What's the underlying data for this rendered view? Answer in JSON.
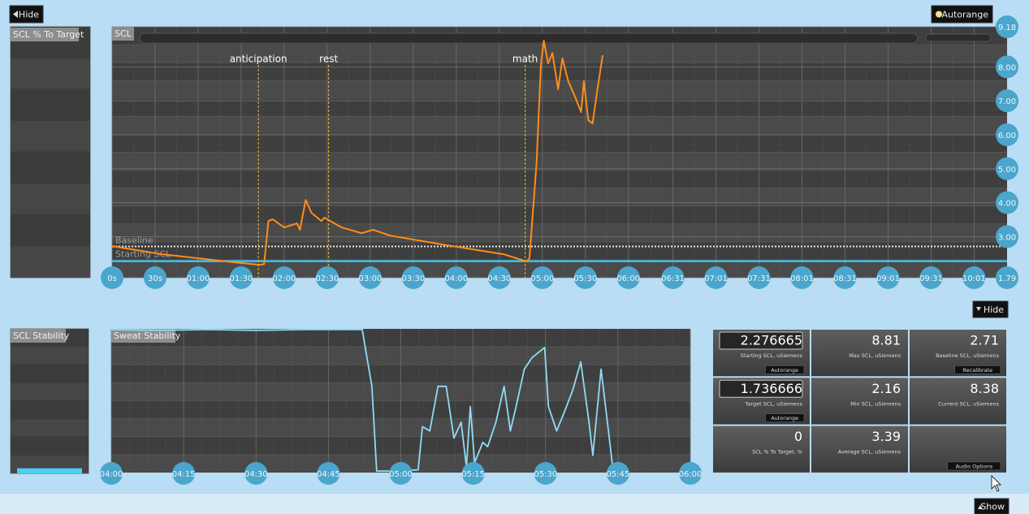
{
  "buttons": {
    "hide_top": "Hide",
    "autorange": "Autorange",
    "hide_mid": "Hide",
    "show": "Show"
  },
  "target_panel": {
    "title": "SCL % To Target"
  },
  "scl_chart": {
    "type": "line",
    "title": "SCL",
    "color": "#ff8c1a",
    "x": [
      0,
      35,
      61,
      86,
      103,
      106,
      109,
      112,
      120,
      129,
      131,
      135,
      139,
      146,
      148,
      160,
      174,
      182,
      194,
      233,
      273,
      289,
      291,
      296,
      299,
      301,
      304,
      307,
      311,
      314,
      318,
      323,
      327,
      329,
      332,
      335,
      338,
      342
    ],
    "values": [
      2.72,
      2.48,
      2.36,
      2.24,
      2.17,
      2.19,
      3.46,
      3.51,
      3.27,
      3.39,
      3.2,
      4.08,
      3.7,
      3.46,
      3.56,
      3.27,
      3.1,
      3.2,
      3.03,
      2.75,
      2.48,
      2.27,
      2.36,
      5.18,
      8.06,
      8.77,
      8.1,
      8.41,
      7.34,
      8.25,
      7.58,
      7.1,
      6.67,
      7.58,
      6.43,
      6.33,
      7.22,
      8.34
    ],
    "xlim": [
      0,
      624
    ],
    "ylim": [
      1.79,
      9.18
    ],
    "xticks": [
      {
        "value": 0,
        "label": "0s"
      },
      {
        "value": 30,
        "label": "30s"
      },
      {
        "value": 60,
        "label": "01:00"
      },
      {
        "value": 90,
        "label": "01:30"
      },
      {
        "value": 120,
        "label": "02:00"
      },
      {
        "value": 150,
        "label": "02:30"
      },
      {
        "value": 180,
        "label": "03:00"
      },
      {
        "value": 210,
        "label": "03:30"
      },
      {
        "value": 240,
        "label": "04:00"
      },
      {
        "value": 270,
        "label": "04:30"
      },
      {
        "value": 300,
        "label": "05:00"
      },
      {
        "value": 330,
        "label": "05:30"
      },
      {
        "value": 360,
        "label": "06:00"
      },
      {
        "value": 391,
        "label": "06:31"
      },
      {
        "value": 421,
        "label": "07:01"
      },
      {
        "value": 451,
        "label": "07:31"
      },
      {
        "value": 481,
        "label": "08:01"
      },
      {
        "value": 511,
        "label": "08:31"
      },
      {
        "value": 541,
        "label": "09:01"
      },
      {
        "value": 571,
        "label": "09:31"
      },
      {
        "value": 601,
        "label": "10:01"
      }
    ],
    "yticks": [
      1.79,
      {
        "value": 3,
        "label": "3.00"
      },
      {
        "value": 4,
        "label": "4.00"
      },
      {
        "value": 5,
        "label": "5.00"
      },
      {
        "value": 6,
        "label": "6.00"
      },
      {
        "value": 7,
        "label": "7.00"
      },
      {
        "value": 8,
        "label": "8.00"
      },
      9.18
    ],
    "annotations": [
      {
        "label": "anticipation",
        "x": 102
      },
      {
        "label": "rest",
        "x": 151
      },
      {
        "label": "math",
        "x": 288
      }
    ],
    "reference_lines": [
      {
        "label": "Baseline"
      },
      {
        "label": "Starting SCL"
      }
    ]
  },
  "stability_panel": {
    "title": "SCL Stability",
    "level": 4,
    "ylim": [
      0,
      100
    ]
  },
  "sweat_chart": {
    "type": "line",
    "title": "Sweat Stability",
    "color": "#8fdcf5",
    "x": [
      240,
      250,
      260,
      270,
      280,
      292,
      294,
      295,
      300,
      303.6,
      304.5,
      306,
      307.7,
      309.4,
      311,
      312.5,
      313.6,
      314.4,
      315.3,
      317,
      318,
      319.7,
      321.4,
      322.7,
      323.9,
      325.6,
      327.2,
      329.8,
      330.6,
      332.3,
      334,
      335.6,
      337.3,
      339,
      339.8,
      341.5,
      343.2,
      344
    ],
    "values": [
      99.5,
      99,
      99.5,
      99,
      99.5,
      99.5,
      60,
      1,
      1,
      2,
      32,
      29,
      60,
      60,
      24,
      35,
      4,
      46,
      7,
      21,
      18,
      35,
      60,
      29,
      46,
      72,
      80,
      87,
      46,
      29,
      43,
      57,
      77,
      35,
      12,
      72,
      24,
      1
    ],
    "xlim": [
      240,
      360
    ],
    "ylim": [
      0,
      100
    ],
    "xticks": [
      {
        "value": 240,
        "label": "04:00"
      },
      {
        "value": 255,
        "label": "04:15"
      },
      {
        "value": 270,
        "label": "04:30"
      },
      {
        "value": 285,
        "label": "04:45"
      },
      {
        "value": 300,
        "label": "05:00"
      },
      {
        "value": 315,
        "label": "05:15"
      },
      {
        "value": 330,
        "label": "05:30"
      },
      {
        "value": 345,
        "label": "05:45"
      },
      {
        "value": 360,
        "label": "06:00"
      }
    ]
  },
  "stats": [
    {
      "value": 2.276665,
      "label": "Starting SCL, uSiemens",
      "button": "Autorange"
    },
    {
      "value": 8.81,
      "label": "Max SCL, uSiemens"
    },
    {
      "value": 2.71,
      "label": "Baseline SCL, uSiemens",
      "button": "Recalibrate"
    },
    {
      "value": 1.736666,
      "label": "Target SCL, uSiemens",
      "button": "Autorange"
    },
    {
      "value": 2.16,
      "label": "Min SCL, uSiemens"
    },
    {
      "value": 8.38,
      "label": "Current SCL, uSiemens"
    },
    {
      "value": 0,
      "label": "SCL % To Target, %"
    },
    {
      "value": 3.39,
      "label": "Average SCL, uSiemens"
    },
    {
      "button": "Audio Options"
    }
  ]
}
